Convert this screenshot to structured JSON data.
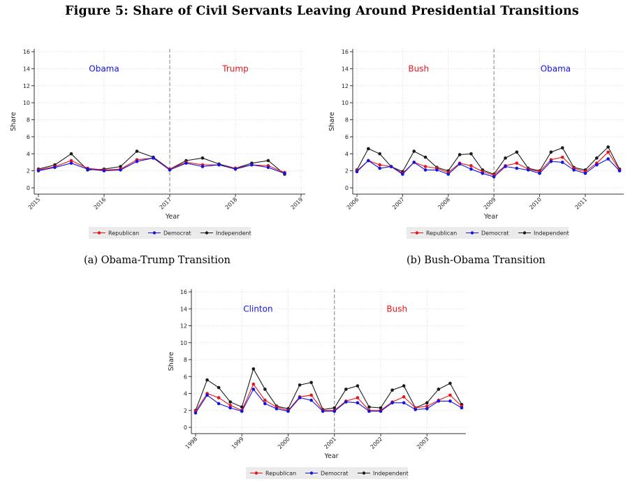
{
  "figure_title": "Figure 5: Share of Civil Servants Leaving Around Presidential Transitions",
  "captions": {
    "a": "(a) Obama-Trump Transition",
    "b": "(b) Bush-Obama Transition"
  },
  "colors": {
    "Republican": "#e8141c",
    "Democrat": "#1414e0",
    "Independent": "#1a1a1a",
    "grid": "#d9d9d9",
    "divider": "#8c8c8c",
    "legend_bg": "#ebebeb"
  },
  "chart_data": [
    {
      "type": "line",
      "title": "",
      "xlabel": "Year",
      "ylabel": "Share",
      "xlim": [
        2015,
        2019
      ],
      "ylim": [
        0,
        16
      ],
      "yticks": [
        "0",
        "2",
        "4",
        "6",
        "8",
        "10",
        "12",
        "14",
        "16"
      ],
      "xticks": [
        "2015",
        "2016",
        "2017",
        "2018",
        "2019"
      ],
      "grid": true,
      "divider_x": 2017,
      "annotations": [
        {
          "text": "Obama",
          "x": 2016,
          "y": 14,
          "color": "#1414e0"
        },
        {
          "text": "Trump",
          "x": 2018,
          "y": 14,
          "color": "#e8141c"
        }
      ],
      "x": [
        2015,
        2015.25,
        2015.5,
        2015.75,
        2016,
        2016.25,
        2016.5,
        2016.75,
        2017,
        2017.25,
        2017.5,
        2017.75,
        2018,
        2018.25,
        2018.5,
        2018.75
      ],
      "series": [
        {
          "name": "Republican",
          "values": [
            2.1,
            2.5,
            3.2,
            2.3,
            2.1,
            2.2,
            3.3,
            3.5,
            2.2,
            3.0,
            2.7,
            2.7,
            2.3,
            2.7,
            2.6,
            1.8
          ]
        },
        {
          "name": "Democrat",
          "values": [
            2.0,
            2.4,
            2.9,
            2.2,
            2.0,
            2.1,
            3.1,
            3.5,
            2.1,
            2.9,
            2.5,
            2.7,
            2.2,
            2.7,
            2.4,
            1.7
          ]
        },
        {
          "name": "Independent",
          "values": [
            2.2,
            2.7,
            4.0,
            2.1,
            2.2,
            2.5,
            4.3,
            3.6,
            2.2,
            3.2,
            3.5,
            2.8,
            2.3,
            2.9,
            3.2,
            1.6
          ]
        }
      ],
      "legend": {
        "position": "bottom",
        "entries": [
          "Republican",
          "Democrat",
          "Independent"
        ]
      }
    },
    {
      "type": "line",
      "title": "",
      "xlabel": "Year",
      "ylabel": "Share",
      "xlim": [
        2006,
        2011.75
      ],
      "ylim": [
        0,
        16
      ],
      "yticks": [
        "0",
        "2",
        "4",
        "6",
        "8",
        "10",
        "12",
        "14",
        "16"
      ],
      "xticks": [
        "2006",
        "2007",
        "2008",
        "2009",
        "2010",
        "2011"
      ],
      "grid": true,
      "divider_x": 2009,
      "annotations": [
        {
          "text": "Bush",
          "x": 2007.35,
          "y": 14,
          "color": "#e8141c"
        },
        {
          "text": "Obama",
          "x": 2010.35,
          "y": 14,
          "color": "#1414e0"
        }
      ],
      "x": [
        2006,
        2006.25,
        2006.5,
        2006.75,
        2007,
        2007.25,
        2007.5,
        2007.75,
        2008,
        2008.25,
        2008.5,
        2008.75,
        2009,
        2009.25,
        2009.5,
        2009.75,
        2010,
        2010.25,
        2010.5,
        2010.75,
        2011,
        2011.25,
        2011.5,
        2011.75
      ],
      "series": [
        {
          "name": "Republican",
          "values": [
            2.0,
            3.2,
            2.7,
            2.5,
            1.7,
            3.0,
            2.5,
            2.3,
            1.8,
            2.9,
            2.6,
            1.9,
            1.5,
            2.6,
            2.9,
            2.2,
            1.9,
            3.3,
            3.6,
            2.3,
            1.9,
            2.9,
            4.2,
            2.1
          ]
        },
        {
          "name": "Democrat",
          "values": [
            1.9,
            3.2,
            2.3,
            2.5,
            1.6,
            3.0,
            2.1,
            2.1,
            1.6,
            2.8,
            2.2,
            1.7,
            1.3,
            2.5,
            2.3,
            2.1,
            1.7,
            3.1,
            3.0,
            2.1,
            1.7,
            2.7,
            3.4,
            2.0
          ]
        },
        {
          "name": "Independent",
          "values": [
            2.1,
            4.6,
            4.0,
            2.5,
            1.9,
            4.3,
            3.6,
            2.4,
            2.0,
            3.9,
            4.0,
            2.1,
            1.6,
            3.5,
            4.2,
            2.3,
            2.0,
            4.2,
            4.7,
            2.4,
            2.1,
            3.5,
            4.8,
            2.2
          ]
        }
      ],
      "legend": {
        "position": "bottom",
        "entries": [
          "Republican",
          "Democrat",
          "Independent"
        ]
      }
    },
    {
      "type": "line",
      "title": "",
      "xlabel": "Year",
      "ylabel": "Share",
      "xlim": [
        1998,
        2003.75
      ],
      "ylim": [
        0,
        16
      ],
      "yticks": [
        "0",
        "2",
        "4",
        "6",
        "8",
        "10",
        "12",
        "14",
        "16"
      ],
      "xticks": [
        "1998",
        "1999",
        "2000",
        "2001",
        "2002",
        "2003"
      ],
      "grid": true,
      "divider_x": 2001,
      "annotations": [
        {
          "text": "Clinton",
          "x": 1999.35,
          "y": 14,
          "color": "#1414e0"
        },
        {
          "text": "Bush",
          "x": 2002.35,
          "y": 14,
          "color": "#e8141c"
        }
      ],
      "x": [
        1998,
        1998.25,
        1998.5,
        1998.75,
        1999,
        1999.25,
        1999.5,
        1999.75,
        2000,
        2000.25,
        2000.5,
        2000.75,
        2001,
        2001.25,
        2001.5,
        2001.75,
        2002,
        2002.25,
        2002.5,
        2002.75,
        2003,
        2003.25,
        2003.5,
        2003.75
      ],
      "series": [
        {
          "name": "Republican",
          "values": [
            1.9,
            4.0,
            3.5,
            2.6,
            2.0,
            5.1,
            3.2,
            2.4,
            2.0,
            3.6,
            3.8,
            2.0,
            2.0,
            3.1,
            3.5,
            2.0,
            2.0,
            3.0,
            3.6,
            2.3,
            2.5,
            3.2,
            3.8,
            2.5
          ]
        },
        {
          "name": "Democrat",
          "values": [
            1.7,
            3.8,
            2.8,
            2.3,
            1.9,
            4.5,
            2.8,
            2.2,
            1.9,
            3.5,
            3.2,
            1.9,
            1.9,
            3.0,
            2.9,
            1.9,
            1.9,
            2.9,
            2.9,
            2.1,
            2.2,
            3.1,
            3.1,
            2.3
          ]
        },
        {
          "name": "Independent",
          "values": [
            2.0,
            5.6,
            4.7,
            3.0,
            2.4,
            6.9,
            4.5,
            2.5,
            2.2,
            5.0,
            5.3,
            2.1,
            2.3,
            4.5,
            4.9,
            2.4,
            2.3,
            4.4,
            4.9,
            2.3,
            2.9,
            4.5,
            5.2,
            2.7
          ]
        }
      ],
      "legend": {
        "position": "bottom",
        "entries": [
          "Republican",
          "Democrat",
          "Independent"
        ]
      }
    }
  ]
}
